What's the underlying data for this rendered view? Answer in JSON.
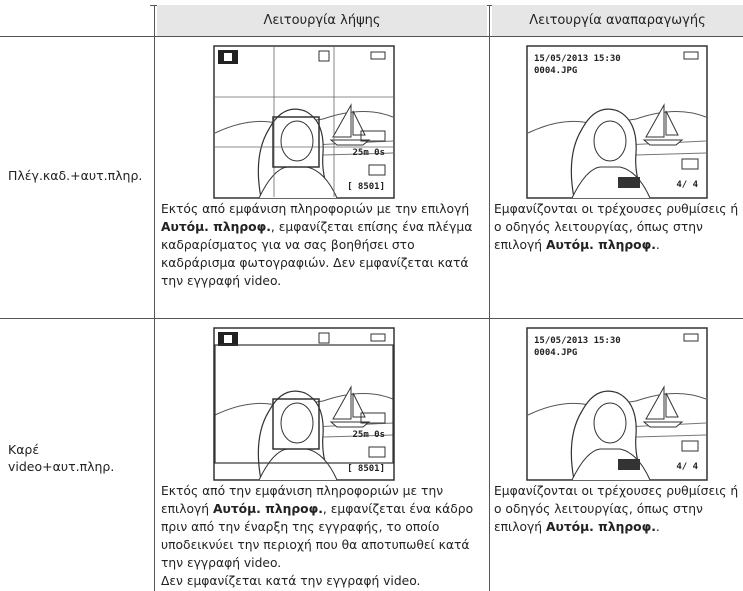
{
  "table": {
    "headers": [
      "Λειτουργία λήψης",
      "Λειτουργία αναπαραγωγής"
    ],
    "rows": [
      {
        "label": "Πλέγ.καδ.+αυτ.πληρ.",
        "shooting": [
          [
            {
              "text": "Εκτός από εμφάνιση πληροφοριών με την επιλογή "
            },
            {
              "text": "Αυτόμ. πληροφ.",
              "bold": true
            },
            {
              "text": ", εμφανίζεται επίσης ένα πλέγμα καδραρίσματος για να σας βοηθήσει στο καδράρισμα φωτογραφιών. Δεν εμφανίζεται κατά την εγγραφή video."
            }
          ]
        ],
        "playback": [
          [
            {
              "text": "Εμφανίζονται οι τρέχουσες ρυθμίσεις ή ο οδηγός λειτουργίας, όπως στην επιλογή "
            },
            {
              "text": "Αυτόμ. πληροφ.",
              "bold": true
            },
            {
              "text": "."
            }
          ]
        ]
      },
      {
        "label": "Καρέ video+αυτ.πληρ.",
        "shooting": [
          [
            {
              "text": "Εκτός από την εμφάνιση πληροφοριών με την επιλογή "
            },
            {
              "text": "Αυτόμ. πληροφ.",
              "bold": true
            },
            {
              "text": ", εμφανίζεται ένα κάδρο πριν από την έναρξη της εγγραφής, το οποίο υποδεικνύει την περιοχή που θα αποτυπωθεί κατά την εγγραφή video."
            }
          ],
          [
            {
              "text": "Δεν εμφανίζεται κατά την εγγραφή video."
            }
          ]
        ],
        "playback": [
          [
            {
              "text": "Εμφανίζονται οι τρέχουσες ρυθμίσεις ή ο οδηγός λειτουργίας, όπως στην επιλογή "
            },
            {
              "text": "Αυτόμ. πληροφ.",
              "bold": true
            },
            {
              "text": "."
            }
          ]
        ]
      }
    ]
  },
  "screens": {
    "shooting": {
      "remaining": "25m 0s",
      "count": "[ 8501]"
    },
    "playback": {
      "date": "15/05/2013 15:30",
      "file": "0004.JPG",
      "frame": "4/ 4"
    }
  }
}
